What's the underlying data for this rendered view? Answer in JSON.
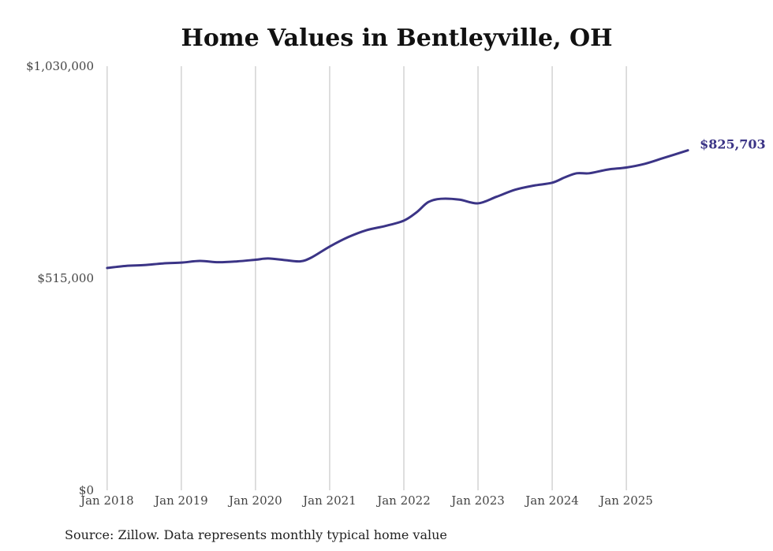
{
  "chart_data": {
    "type": "line",
    "title": "Home Values in Bentleyville, OH",
    "xlabel": "",
    "ylabel": "",
    "ylim": [
      0,
      1030000
    ],
    "yticks": [
      {
        "value": 0,
        "label": "$0"
      },
      {
        "value": 515000,
        "label": "$515,000"
      },
      {
        "value": 1030000,
        "label": "$1,030,000"
      }
    ],
    "xlim": [
      2017.98,
      2025.85
    ],
    "xticks": [
      {
        "value": 2018,
        "label": "Jan 2018"
      },
      {
        "value": 2019,
        "label": "Jan 2019"
      },
      {
        "value": 2020,
        "label": "Jan 2020"
      },
      {
        "value": 2021,
        "label": "Jan 2021"
      },
      {
        "value": 2022,
        "label": "Jan 2022"
      },
      {
        "value": 2023,
        "label": "Jan 2023"
      },
      {
        "value": 2024,
        "label": "Jan 2024"
      },
      {
        "value": 2025,
        "label": "Jan 2025"
      }
    ],
    "grid": "vertical",
    "series": [
      {
        "name": "Typical home value",
        "color": "#3b3486",
        "points": [
          {
            "x": 2018.0,
            "y": 540000
          },
          {
            "x": 2018.25,
            "y": 545000
          },
          {
            "x": 2018.5,
            "y": 547000
          },
          {
            "x": 2018.75,
            "y": 551000
          },
          {
            "x": 2019.0,
            "y": 553000
          },
          {
            "x": 2019.25,
            "y": 557000
          },
          {
            "x": 2019.5,
            "y": 554000
          },
          {
            "x": 2019.75,
            "y": 556000
          },
          {
            "x": 2020.0,
            "y": 560000
          },
          {
            "x": 2020.17,
            "y": 563000
          },
          {
            "x": 2020.4,
            "y": 559000
          },
          {
            "x": 2020.6,
            "y": 556000
          },
          {
            "x": 2020.75,
            "y": 565000
          },
          {
            "x": 2021.0,
            "y": 592000
          },
          {
            "x": 2021.25,
            "y": 615000
          },
          {
            "x": 2021.5,
            "y": 632000
          },
          {
            "x": 2021.75,
            "y": 642000
          },
          {
            "x": 2022.0,
            "y": 655000
          },
          {
            "x": 2022.17,
            "y": 675000
          },
          {
            "x": 2022.33,
            "y": 700000
          },
          {
            "x": 2022.5,
            "y": 708000
          },
          {
            "x": 2022.75,
            "y": 706000
          },
          {
            "x": 2023.0,
            "y": 697000
          },
          {
            "x": 2023.25,
            "y": 713000
          },
          {
            "x": 2023.5,
            "y": 730000
          },
          {
            "x": 2023.75,
            "y": 740000
          },
          {
            "x": 2024.0,
            "y": 747000
          },
          {
            "x": 2024.17,
            "y": 760000
          },
          {
            "x": 2024.33,
            "y": 770000
          },
          {
            "x": 2024.5,
            "y": 770000
          },
          {
            "x": 2024.75,
            "y": 779000
          },
          {
            "x": 2025.0,
            "y": 784000
          },
          {
            "x": 2025.25,
            "y": 793000
          },
          {
            "x": 2025.5,
            "y": 807000
          },
          {
            "x": 2025.83,
            "y": 825703
          }
        ],
        "end_label": "$825,703"
      }
    ]
  },
  "source_note": "Source: Zillow. Data represents monthly typical home value"
}
